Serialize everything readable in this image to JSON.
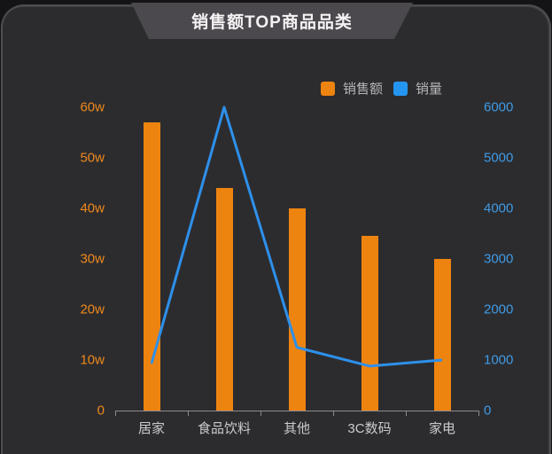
{
  "header": {
    "title": "销售额TOP商品品类"
  },
  "legend": {
    "items": [
      {
        "label": "销售额",
        "color": "#ee8410",
        "series_type": "bar"
      },
      {
        "label": "销量",
        "color": "#2496f2",
        "series_type": "line"
      }
    ]
  },
  "chart_data": {
    "type": "bar+line",
    "title": "销售额TOP商品品类",
    "categories": [
      "居家",
      "食品饮料",
      "其他",
      "3C数码",
      "家电"
    ],
    "series": [
      {
        "name": "销售额",
        "type": "bar",
        "yaxis": "left",
        "unit": "w",
        "values": [
          57,
          44,
          40,
          34.5,
          30
        ],
        "color": "#ee8410"
      },
      {
        "name": "销量",
        "type": "line",
        "yaxis": "right",
        "values": [
          930,
          6000,
          1250,
          880,
          1000
        ],
        "color": "#2e90ea"
      }
    ],
    "left_axis": {
      "min": 0,
      "max": 60,
      "ticks": [
        "0",
        "10w",
        "20w",
        "30w",
        "40w",
        "50w",
        "60w"
      ],
      "label_color": "#f0891b"
    },
    "right_axis": {
      "min": 0,
      "max": 6000,
      "ticks": [
        "0",
        "1000",
        "2000",
        "3000",
        "4000",
        "5000",
        "6000"
      ],
      "label_color": "#3e9be6"
    },
    "grid": false,
    "legend_position": "top-right",
    "x_label_color": "#cbcbcf",
    "axis_line_color": "#8b8b8f"
  }
}
